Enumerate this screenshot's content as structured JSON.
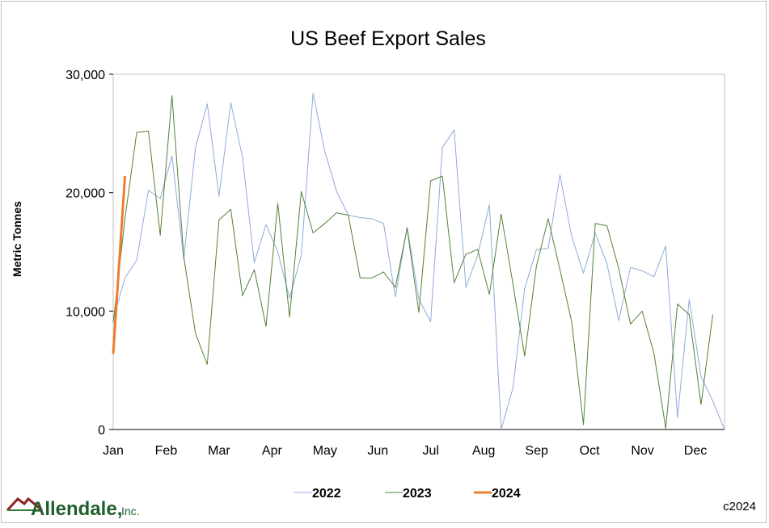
{
  "chart_data": {
    "type": "line",
    "title": "US Beef Export Sales",
    "ylabel": "Metric Tonnes",
    "xlabel": "",
    "ylim": [
      0,
      30000
    ],
    "yticks": [
      "0",
      "10,000",
      "20,000",
      "30,000"
    ],
    "ytick_values": [
      0,
      10000,
      20000,
      30000
    ],
    "months": [
      "Jan",
      "Feb",
      "Mar",
      "Apr",
      "May",
      "Jun",
      "Jul",
      "Aug",
      "Sep",
      "Oct",
      "Nov",
      "Dec"
    ],
    "grid": false,
    "legend_position": "bottom",
    "series": [
      {
        "name": "2022",
        "color": "#8eaadb",
        "width": 1,
        "values": [
          9300,
          12800,
          14300,
          20200,
          19500,
          23100,
          14400,
          23800,
          27500,
          19700,
          27600,
          23000,
          14100,
          17300,
          15000,
          11100,
          14700,
          28400,
          23500,
          20100,
          18100,
          17900,
          17800,
          17400,
          11200,
          17100,
          11000,
          9100,
          23800,
          25300,
          12000,
          14700,
          19000,
          0,
          3500,
          11900,
          15200,
          15300,
          21500,
          16300,
          13200,
          16600,
          14000,
          9200,
          13700,
          13400,
          12900,
          15500,
          1000,
          11000,
          4500,
          2400,
          0
        ]
      },
      {
        "name": "2023",
        "color": "#548235",
        "width": 1,
        "values": [
          9000,
          17800,
          25100,
          25200,
          16400,
          28200,
          14600,
          8100,
          5500,
          17700,
          18600,
          11300,
          13500,
          8700,
          19100,
          9500,
          20100,
          16600,
          17400,
          18300,
          18100,
          12800,
          12800,
          13300,
          12000,
          17000,
          9900,
          21000,
          21400,
          12400,
          14800,
          15200,
          11400,
          18200,
          12300,
          6200,
          13800,
          17800,
          13500,
          9100,
          400,
          17400,
          17200,
          13600,
          8900,
          10000,
          6400,
          100,
          10600,
          9700,
          2100,
          9700
        ]
      },
      {
        "name": "2024",
        "color": "#ed7d31",
        "width": 3,
        "values": [
          6400,
          21400
        ]
      }
    ]
  },
  "branding": {
    "logo_text": "Allendale,",
    "logo_suffix": "Inc.",
    "copyright": "c2024"
  }
}
